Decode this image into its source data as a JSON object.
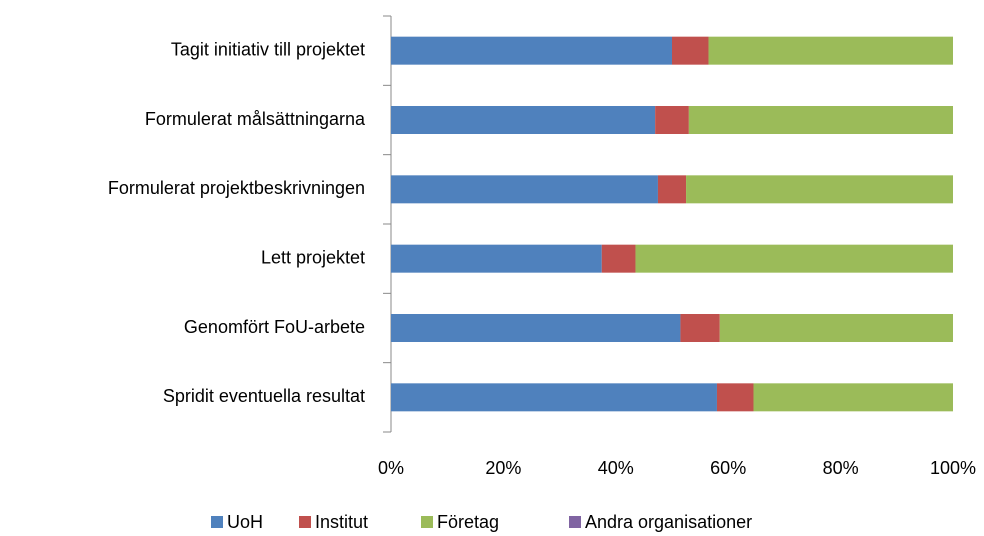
{
  "chart_data": {
    "type": "stacked_barh",
    "categories": [
      "Tagit initiativ till projektet",
      "Formulerat målsättningarna",
      "Formulerat projektbeskrivningen",
      "Lett projektet",
      "Genomfört FoU-arbete",
      "Spridit eventuella resultat"
    ],
    "series": [
      {
        "name": "UoH",
        "color": "#4f81bd",
        "values": [
          50,
          47,
          47.5,
          37.5,
          51.5,
          58
        ]
      },
      {
        "name": "Institut",
        "color": "#c0504d",
        "values": [
          6.5,
          6,
          5,
          6,
          7,
          6.5
        ]
      },
      {
        "name": "Företag",
        "color": "#9bbb59",
        "values": [
          43.5,
          47,
          47.5,
          56.5,
          41.5,
          35.5
        ]
      },
      {
        "name": "Andra organisationer",
        "color": "#8064a2",
        "values": [
          0,
          0,
          0,
          0,
          0,
          0
        ]
      }
    ],
    "xlim": [
      0,
      100
    ],
    "xticks": [
      {
        "value": 0,
        "label": "0%"
      },
      {
        "value": 20,
        "label": "20%"
      },
      {
        "value": 40,
        "label": "40%"
      },
      {
        "value": 60,
        "label": "60%"
      },
      {
        "value": 80,
        "label": "80%"
      },
      {
        "value": 100,
        "label": "100%"
      }
    ],
    "legend": "bottom"
  }
}
